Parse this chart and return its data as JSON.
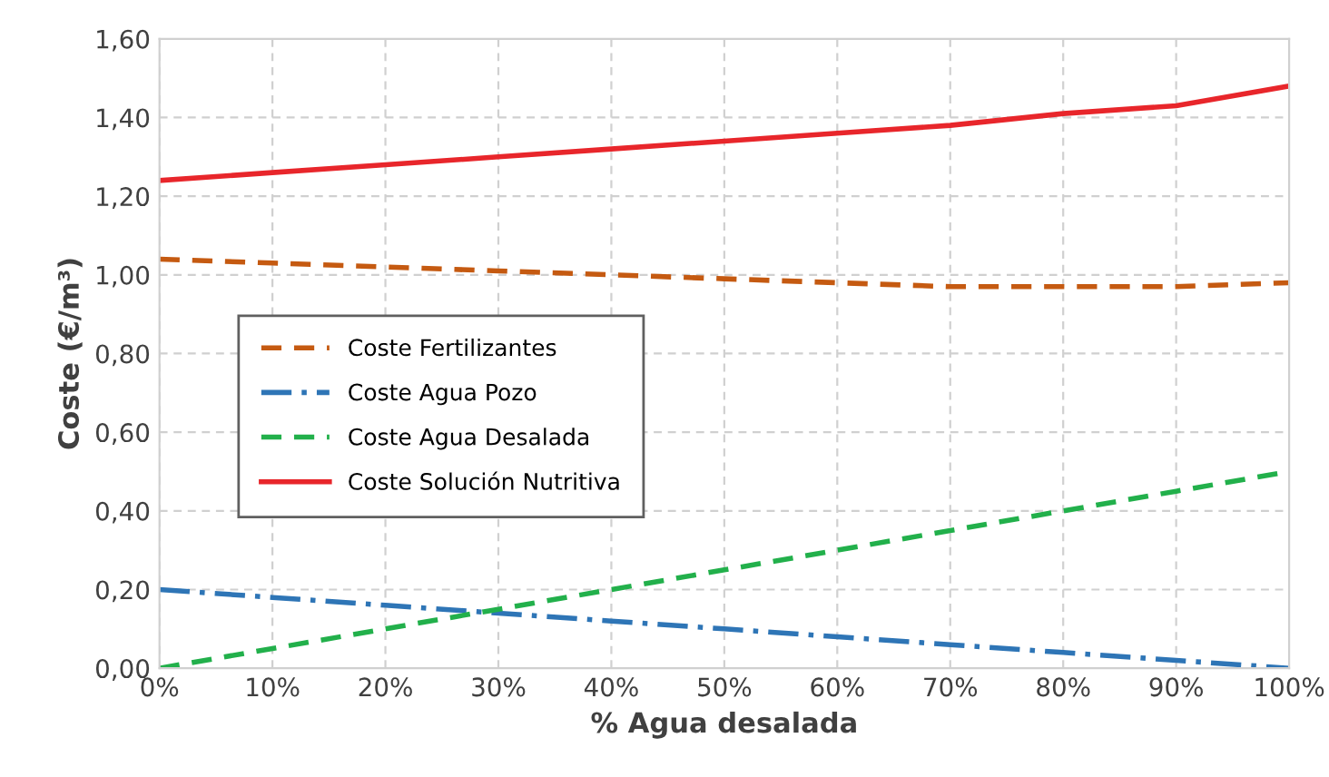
{
  "chart_data": {
    "type": "line",
    "xlabel": "% Agua desalada",
    "ylabel": "Coste (€/m³)",
    "x": [
      0,
      10,
      20,
      30,
      40,
      50,
      60,
      70,
      80,
      90,
      100
    ],
    "xlim": [
      0,
      100
    ],
    "xticks": [
      {
        "value": 0,
        "label": "0%"
      },
      {
        "value": 10,
        "label": "10%"
      },
      {
        "value": 20,
        "label": "20%"
      },
      {
        "value": 30,
        "label": "30%"
      },
      {
        "value": 40,
        "label": "40%"
      },
      {
        "value": 50,
        "label": "50%"
      },
      {
        "value": 60,
        "label": "60%"
      },
      {
        "value": 70,
        "label": "70%"
      },
      {
        "value": 80,
        "label": "80%"
      },
      {
        "value": 90,
        "label": "90%"
      },
      {
        "value": 100,
        "label": "100%"
      }
    ],
    "ylim": [
      0,
      1.6
    ],
    "yticks": [
      {
        "value": 0,
        "label": "0,00"
      },
      {
        "value": 0.2,
        "label": "0,20"
      },
      {
        "value": 0.4,
        "label": "0,40"
      },
      {
        "value": 0.6,
        "label": "0,60"
      },
      {
        "value": 0.8,
        "label": "0,80"
      },
      {
        "value": 1.0,
        "label": "1,00"
      },
      {
        "value": 1.2,
        "label": "1,20"
      },
      {
        "value": 1.4,
        "label": "1,40"
      },
      {
        "value": 1.6,
        "label": "1,60"
      }
    ],
    "grid": true,
    "legend": "left",
    "marker": "none",
    "series": [
      {
        "name": "Coste Fertilizantes",
        "color": "#c55a11",
        "line_style": "dashed",
        "values": [
          1.04,
          1.03,
          1.02,
          1.01,
          1.0,
          0.99,
          0.98,
          0.97,
          0.97,
          0.97,
          0.98
        ]
      },
      {
        "name": "Coste Agua Pozo",
        "color": "#2e75b6",
        "line_style": "dashdot",
        "values": [
          0.2,
          0.18,
          0.16,
          0.14,
          0.12,
          0.1,
          0.08,
          0.06,
          0.04,
          0.02,
          0.0
        ]
      },
      {
        "name": "Coste Agua Desalada",
        "color": "#22b04b",
        "line_style": "dashed",
        "values": [
          0.0,
          0.05,
          0.1,
          0.15,
          0.2,
          0.25,
          0.3,
          0.35,
          0.4,
          0.45,
          0.5
        ]
      },
      {
        "name": "Coste Solución Nutritiva",
        "color": "#e8262b",
        "line_style": "solid",
        "values": [
          1.24,
          1.26,
          1.28,
          1.3,
          1.32,
          1.34,
          1.36,
          1.38,
          1.41,
          1.43,
          1.48
        ]
      }
    ]
  }
}
